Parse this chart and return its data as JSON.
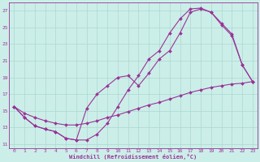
{
  "xlabel": "Windchill (Refroidissement éolien,°C)",
  "background_color": "#cceee8",
  "line_color": "#993399",
  "grid_color": "#aad8d0",
  "xlim": [
    -0.5,
    23.5
  ],
  "ylim": [
    10.5,
    28.0
  ],
  "xticks": [
    0,
    1,
    2,
    3,
    4,
    5,
    6,
    7,
    8,
    9,
    10,
    11,
    12,
    13,
    14,
    15,
    16,
    17,
    18,
    19,
    20,
    21,
    22,
    23
  ],
  "yticks": [
    11,
    13,
    15,
    17,
    19,
    21,
    23,
    25,
    27
  ],
  "line1_x": [
    0,
    1,
    2,
    3,
    4,
    5,
    6,
    7,
    8,
    9,
    10,
    11,
    12,
    13,
    14,
    15,
    16,
    17,
    18,
    19,
    20,
    21,
    22,
    23
  ],
  "line1_y": [
    15.5,
    14.2,
    13.2,
    12.8,
    12.5,
    11.7,
    11.5,
    11.5,
    12.2,
    13.5,
    15.5,
    17.5,
    19.2,
    21.2,
    22.2,
    24.3,
    26.0,
    27.2,
    27.3,
    26.8,
    25.3,
    24.0,
    20.5,
    18.5
  ],
  "line2_x": [
    0,
    1,
    2,
    3,
    4,
    5,
    6,
    7,
    8,
    9,
    10,
    11,
    12,
    13,
    14,
    15,
    16,
    17,
    18,
    19,
    20,
    21,
    22,
    23
  ],
  "line2_y": [
    15.5,
    14.2,
    13.2,
    12.8,
    12.5,
    11.7,
    11.5,
    15.3,
    17.0,
    18.0,
    19.0,
    19.2,
    18.0,
    19.5,
    21.2,
    22.2,
    24.3,
    26.8,
    27.2,
    26.8,
    25.5,
    24.2,
    20.5,
    18.5
  ],
  "line3_x": [
    0,
    1,
    2,
    3,
    4,
    5,
    6,
    7,
    8,
    9,
    10,
    11,
    12,
    13,
    14,
    15,
    16,
    17,
    18,
    19,
    20,
    21,
    22,
    23
  ],
  "line3_y": [
    15.5,
    14.7,
    14.2,
    13.8,
    13.5,
    13.3,
    13.3,
    13.5,
    13.8,
    14.2,
    14.5,
    14.9,
    15.3,
    15.7,
    16.0,
    16.4,
    16.8,
    17.2,
    17.5,
    17.8,
    18.0,
    18.2,
    18.3,
    18.5
  ]
}
